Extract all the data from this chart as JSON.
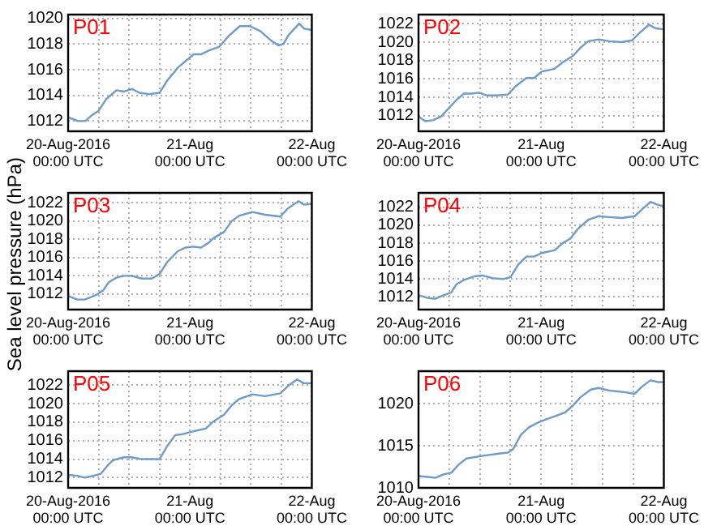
{
  "chart_data": [
    {
      "type": "line",
      "title": "P01",
      "color": "#6f9bc8",
      "grid": true,
      "xlim": [
        "2016-08-20T00:00",
        "2016-08-22T00:00"
      ],
      "xticks": [
        {
          "value": "2016-08-20T00:00",
          "label": "20-Aug-2016\n00:00 UTC"
        },
        {
          "value": "2016-08-20T06:00",
          "label": null
        },
        {
          "value": "2016-08-20T12:00",
          "label": null
        },
        {
          "value": "2016-08-20T18:00",
          "label": null
        },
        {
          "value": "2016-08-21T00:00",
          "label": "21-Aug\n00:00 UTC"
        },
        {
          "value": "2016-08-21T06:00",
          "label": null
        },
        {
          "value": "2016-08-21T12:00",
          "label": null
        },
        {
          "value": "2016-08-21T18:00",
          "label": null
        },
        {
          "value": "2016-08-22T00:00",
          "label": "22-Aug\n00:00 UTC"
        }
      ],
      "ylim": [
        1011.2,
        1020.3
      ],
      "yticks": [
        1012,
        1014,
        1016,
        1018,
        1020
      ],
      "x": [
        "2016-08-20T00:00",
        "2016-08-20T01:54",
        "2016-08-20T03:24",
        "2016-08-20T04:30",
        "2016-08-20T06:00",
        "2016-08-20T07:30",
        "2016-08-20T09:30",
        "2016-08-20T11:00",
        "2016-08-20T12:36",
        "2016-08-20T14:00",
        "2016-08-20T16:00",
        "2016-08-20T18:00",
        "2016-08-20T19:36",
        "2016-08-20T21:42",
        "2016-08-20T23:12",
        "2016-08-21T00:42",
        "2016-08-21T02:12",
        "2016-08-21T03:42",
        "2016-08-21T05:48",
        "2016-08-21T07:48",
        "2016-08-21T09:48",
        "2016-08-21T11:48",
        "2016-08-21T13:54",
        "2016-08-21T15:54",
        "2016-08-21T17:24",
        "2016-08-21T18:24",
        "2016-08-21T19:24",
        "2016-08-21T21:30",
        "2016-08-21T22:30",
        "2016-08-22T00:00"
      ],
      "values": [
        1012.3,
        1012,
        1012,
        1012.4,
        1012.8,
        1013.7,
        1014.4,
        1014.3,
        1014.5,
        1014.2,
        1014.1,
        1014.2,
        1015.2,
        1016.2,
        1016.7,
        1017.2,
        1017.2,
        1017.5,
        1017.8,
        1018.7,
        1019.4,
        1019.4,
        1019,
        1018.3,
        1017.9,
        1018,
        1018.7,
        1019.6,
        1019.2,
        1019.1
      ]
    },
    {
      "type": "line",
      "title": "P02",
      "color": "#6f9bc8",
      "grid": true,
      "xlim": [
        "2016-08-20T00:00",
        "2016-08-22T00:00"
      ],
      "xticks": [
        {
          "value": "2016-08-20T00:00",
          "label": "20-Aug-2016\n00:00 UTC"
        },
        {
          "value": "2016-08-20T06:00",
          "label": null
        },
        {
          "value": "2016-08-20T12:00",
          "label": null
        },
        {
          "value": "2016-08-20T18:00",
          "label": null
        },
        {
          "value": "2016-08-21T00:00",
          "label": "21-Aug\n00:00 UTC"
        },
        {
          "value": "2016-08-21T06:00",
          "label": null
        },
        {
          "value": "2016-08-21T12:00",
          "label": null
        },
        {
          "value": "2016-08-21T18:00",
          "label": null
        },
        {
          "value": "2016-08-22T00:00",
          "label": "22-Aug\n00:00 UTC"
        }
      ],
      "ylim": [
        1010.3,
        1023
      ],
      "yticks": [
        1012,
        1014,
        1016,
        1018,
        1020,
        1022
      ],
      "x": [
        "2016-08-20T00:00",
        "2016-08-20T01:18",
        "2016-08-20T02:48",
        "2016-08-20T04:24",
        "2016-08-20T05:54",
        "2016-08-20T07:24",
        "2016-08-20T08:54",
        "2016-08-20T10:24",
        "2016-08-20T11:54",
        "2016-08-20T13:24",
        "2016-08-20T15:24",
        "2016-08-20T17:30",
        "2016-08-20T19:00",
        "2016-08-20T21:06",
        "2016-08-20T22:36",
        "2016-08-21T00:06",
        "2016-08-21T02:36",
        "2016-08-21T04:12",
        "2016-08-21T06:12",
        "2016-08-21T07:42",
        "2016-08-21T09:12",
        "2016-08-21T11:12",
        "2016-08-21T13:18",
        "2016-08-21T15:48",
        "2016-08-21T17:48",
        "2016-08-21T19:24",
        "2016-08-21T21:06",
        "2016-08-21T22:24",
        "2016-08-22T00:00"
      ],
      "values": [
        1011.9,
        1011.4,
        1011.5,
        1011.9,
        1012.8,
        1013.7,
        1014.4,
        1014.4,
        1014.5,
        1014.2,
        1014.2,
        1014.3,
        1015.2,
        1016.1,
        1016.1,
        1016.8,
        1017.1,
        1017.8,
        1018.5,
        1019.4,
        1020.1,
        1020.3,
        1020.1,
        1020,
        1020.2,
        1021.1,
        1021.9,
        1021.5,
        1021.4
      ]
    },
    {
      "type": "line",
      "title": "P03",
      "ylabel": "Sea level pressure (hPa)",
      "color": "#6f9bc8",
      "grid": true,
      "xlim": [
        "2016-08-20T00:00",
        "2016-08-22T00:00"
      ],
      "xticks": [
        {
          "value": "2016-08-20T00:00",
          "label": "20-Aug-2016\n00:00 UTC"
        },
        {
          "value": "2016-08-20T06:00",
          "label": null
        },
        {
          "value": "2016-08-20T12:00",
          "label": null
        },
        {
          "value": "2016-08-20T18:00",
          "label": null
        },
        {
          "value": "2016-08-21T00:00",
          "label": "21-Aug\n00:00 UTC"
        },
        {
          "value": "2016-08-21T06:00",
          "label": null
        },
        {
          "value": "2016-08-21T12:00",
          "label": null
        },
        {
          "value": "2016-08-21T18:00",
          "label": null
        },
        {
          "value": "2016-08-22T00:00",
          "label": "22-Aug\n00:00 UTC"
        }
      ],
      "ylim": [
        1010.3,
        1023.1
      ],
      "yticks": [
        1012,
        1014,
        1016,
        1018,
        1020,
        1022
      ],
      "x": [
        "2016-08-20T00:00",
        "2016-08-20T01:48",
        "2016-08-20T03:18",
        "2016-08-20T05:30",
        "2016-08-20T06:54",
        "2016-08-20T08:00",
        "2016-08-20T09:30",
        "2016-08-20T11:00",
        "2016-08-20T12:30",
        "2016-08-20T14:30",
        "2016-08-20T16:30",
        "2016-08-20T18:00",
        "2016-08-20T19:30",
        "2016-08-20T21:36",
        "2016-08-20T23:06",
        "2016-08-21T00:36",
        "2016-08-21T02:12",
        "2016-08-21T03:36",
        "2016-08-21T04:48",
        "2016-08-21T06:42",
        "2016-08-21T08:12",
        "2016-08-21T09:42",
        "2016-08-21T12:18",
        "2016-08-21T14:48",
        "2016-08-21T17:48",
        "2016-08-21T19:18",
        "2016-08-21T21:24",
        "2016-08-21T22:24",
        "2016-08-22T00:00"
      ],
      "values": [
        1011.8,
        1011.4,
        1011.4,
        1011.9,
        1012.4,
        1013.3,
        1013.8,
        1014,
        1014,
        1013.7,
        1013.7,
        1014.2,
        1015.5,
        1016.7,
        1017.1,
        1017.2,
        1017.1,
        1017.6,
        1018.2,
        1018.8,
        1020,
        1020.6,
        1021,
        1020.7,
        1020.5,
        1021.4,
        1022.2,
        1021.8,
        1021.9
      ]
    },
    {
      "type": "line",
      "title": "P04",
      "color": "#6f9bc8",
      "grid": true,
      "xlim": [
        "2016-08-20T00:00",
        "2016-08-22T00:00"
      ],
      "xticks": [
        {
          "value": "2016-08-20T00:00",
          "label": "20-Aug-2016\n00:00 UTC"
        },
        {
          "value": "2016-08-20T06:00",
          "label": null
        },
        {
          "value": "2016-08-20T12:00",
          "label": null
        },
        {
          "value": "2016-08-20T18:00",
          "label": null
        },
        {
          "value": "2016-08-21T00:00",
          "label": "21-Aug\n00:00 UTC"
        },
        {
          "value": "2016-08-21T06:00",
          "label": null
        },
        {
          "value": "2016-08-21T12:00",
          "label": null
        },
        {
          "value": "2016-08-21T18:00",
          "label": null
        },
        {
          "value": "2016-08-22T00:00",
          "label": "22-Aug\n00:00 UTC"
        }
      ],
      "ylim": [
        1010.6,
        1023.6
      ],
      "yticks": [
        1012,
        1014,
        1016,
        1018,
        1020,
        1022
      ],
      "x": [
        "2016-08-20T00:00",
        "2016-08-20T01:48",
        "2016-08-20T03:18",
        "2016-08-20T04:54",
        "2016-08-20T06:24",
        "2016-08-20T07:24",
        "2016-08-20T08:54",
        "2016-08-20T10:54",
        "2016-08-20T12:30",
        "2016-08-20T14:30",
        "2016-08-20T16:30",
        "2016-08-20T18:00",
        "2016-08-20T19:30",
        "2016-08-20T21:06",
        "2016-08-20T22:36",
        "2016-08-21T00:06",
        "2016-08-21T02:36",
        "2016-08-21T04:12",
        "2016-08-21T05:42",
        "2016-08-21T07:12",
        "2016-08-21T09:12",
        "2016-08-21T11:12",
        "2016-08-21T13:18",
        "2016-08-21T15:48",
        "2016-08-21T18:18",
        "2016-08-21T19:48",
        "2016-08-21T21:24",
        "2016-08-21T22:42",
        "2016-08-22T00:00"
      ],
      "values": [
        1012.2,
        1011.9,
        1011.8,
        1012.2,
        1012.5,
        1013.4,
        1013.9,
        1014.3,
        1014.4,
        1014.1,
        1014,
        1014.2,
        1015.6,
        1016.5,
        1016.5,
        1016.9,
        1017.2,
        1018,
        1018.5,
        1019.6,
        1020.6,
        1021,
        1020.9,
        1020.8,
        1021,
        1021.8,
        1022.6,
        1022.3,
        1022.1
      ]
    },
    {
      "type": "line",
      "title": "P05",
      "color": "#6f9bc8",
      "grid": true,
      "xlim": [
        "2016-08-20T00:00",
        "2016-08-22T00:00"
      ],
      "xticks": [
        {
          "value": "2016-08-20T00:00",
          "label": "20-Aug-2016\n00:00 UTC"
        },
        {
          "value": "2016-08-20T06:00",
          "label": null
        },
        {
          "value": "2016-08-20T12:00",
          "label": null
        },
        {
          "value": "2016-08-20T18:00",
          "label": null
        },
        {
          "value": "2016-08-21T00:00",
          "label": "21-Aug\n00:00 UTC"
        },
        {
          "value": "2016-08-21T06:00",
          "label": null
        },
        {
          "value": "2016-08-21T12:00",
          "label": null
        },
        {
          "value": "2016-08-21T18:00",
          "label": null
        },
        {
          "value": "2016-08-22T00:00",
          "label": "22-Aug\n00:00 UTC"
        }
      ],
      "ylim": [
        1010.9,
        1023.5
      ],
      "yticks": [
        1012,
        1014,
        1016,
        1018,
        1020,
        1022
      ],
      "x": [
        "2016-08-20T00:00",
        "2016-08-20T01:48",
        "2016-08-20T03:18",
        "2016-08-20T04:54",
        "2016-08-20T06:24",
        "2016-08-20T07:54",
        "2016-08-20T08:54",
        "2016-08-20T11:00",
        "2016-08-20T12:30",
        "2016-08-20T14:30",
        "2016-08-20T16:30",
        "2016-08-20T18:00",
        "2016-08-20T19:30",
        "2016-08-20T21:06",
        "2016-08-20T22:36",
        "2016-08-21T00:36",
        "2016-08-21T03:06",
        "2016-08-21T04:42",
        "2016-08-21T06:42",
        "2016-08-21T08:12",
        "2016-08-21T09:42",
        "2016-08-21T12:18",
        "2016-08-21T14:48",
        "2016-08-21T17:48",
        "2016-08-21T19:18",
        "2016-08-21T21:06",
        "2016-08-21T22:24",
        "2016-08-22T00:00"
      ],
      "values": [
        1012.3,
        1012.2,
        1012,
        1012.2,
        1012.4,
        1013.4,
        1013.9,
        1014.2,
        1014.2,
        1014,
        1014,
        1014,
        1015.4,
        1016.6,
        1016.7,
        1017,
        1017.3,
        1018.1,
        1018.8,
        1019.8,
        1020.5,
        1021,
        1020.8,
        1021.1,
        1021.9,
        1022.6,
        1022.2,
        1022.2
      ]
    },
    {
      "type": "line",
      "title": "P06",
      "color": "#6f9bc8",
      "grid": true,
      "xlim": [
        "2016-08-20T00:00",
        "2016-08-22T00:00"
      ],
      "xticks": [
        {
          "value": "2016-08-20T00:00",
          "label": "20-Aug-2016\n00:00 UTC"
        },
        {
          "value": "2016-08-20T06:00",
          "label": null
        },
        {
          "value": "2016-08-20T12:00",
          "label": null
        },
        {
          "value": "2016-08-20T18:00",
          "label": null
        },
        {
          "value": "2016-08-21T00:00",
          "label": "21-Aug\n00:00 UTC"
        },
        {
          "value": "2016-08-21T06:00",
          "label": null
        },
        {
          "value": "2016-08-21T12:00",
          "label": null
        },
        {
          "value": "2016-08-21T18:00",
          "label": null
        },
        {
          "value": "2016-08-22T00:00",
          "label": "22-Aug\n00:00 UTC"
        }
      ],
      "ylim": [
        1010,
        1023.9
      ],
      "yticks": [
        1010,
        1015,
        1020
      ],
      "x": [
        "2016-08-20T00:00",
        "2016-08-20T01:48",
        "2016-08-20T03:18",
        "2016-08-20T04:54",
        "2016-08-20T06:24",
        "2016-08-20T07:54",
        "2016-08-20T09:24",
        "2016-08-20T11:24",
        "2016-08-20T13:30",
        "2016-08-20T16:00",
        "2016-08-20T17:30",
        "2016-08-20T18:30",
        "2016-08-20T20:00",
        "2016-08-20T21:36",
        "2016-08-20T23:06",
        "2016-08-21T01:06",
        "2016-08-21T02:36",
        "2016-08-21T04:42",
        "2016-08-21T06:12",
        "2016-08-21T07:42",
        "2016-08-21T09:42",
        "2016-08-21T11:12",
        "2016-08-21T13:18",
        "2016-08-21T16:18",
        "2016-08-21T18:18",
        "2016-08-21T19:48",
        "2016-08-21T21:24",
        "2016-08-21T22:54",
        "2016-08-22T00:00"
      ],
      "values": [
        1011.4,
        1011.3,
        1011.2,
        1011.6,
        1011.8,
        1012.8,
        1013.5,
        1013.7,
        1013.9,
        1014.1,
        1014.2,
        1014.6,
        1016.3,
        1017.2,
        1017.7,
        1018.2,
        1018.5,
        1019,
        1019.8,
        1020.8,
        1021.7,
        1021.9,
        1021.6,
        1021.4,
        1021.2,
        1022.1,
        1022.8,
        1022.6,
        1022.6
      ]
    }
  ]
}
